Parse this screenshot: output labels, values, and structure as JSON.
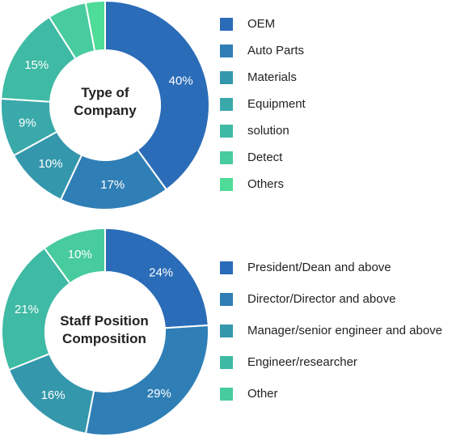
{
  "chart_data": [
    {
      "type": "pie",
      "title": "Type of Company",
      "categories": [
        "OEM",
        "Auto Parts",
        "Materials",
        "Equipment",
        "solution",
        "Detect",
        "Others"
      ],
      "values": [
        40,
        17,
        10,
        9,
        15,
        6,
        3
      ],
      "labels": [
        "40%",
        "17%",
        "10%",
        "9%",
        "15%",
        "",
        ""
      ],
      "colors": [
        "#2b6cb8",
        "#2f7fb6",
        "#3597ac",
        "#3aa9aa",
        "#3fbaa4",
        "#48cb9e",
        "#4fdb98"
      ],
      "legend_position": "right"
    },
    {
      "type": "pie",
      "title": "Staff Position Composition",
      "categories": [
        "President/Dean and above",
        "Director/Director and above",
        "Manager/senior engineer and above",
        "Engineer/researcher",
        "Other"
      ],
      "values": [
        24,
        29,
        16,
        21,
        10
      ],
      "labels": [
        "24%",
        "29%",
        "16%",
        "21%",
        "10%"
      ],
      "colors": [
        "#2b6cb8",
        "#2f7fb6",
        "#3597ac",
        "#3fbaa4",
        "#48cb9e"
      ],
      "legend_position": "right"
    }
  ],
  "titles": {
    "chart1_line1": "Type of",
    "chart1_line2": "Company",
    "chart2_line1": "Staff Position",
    "chart2_line2": "Composition"
  }
}
